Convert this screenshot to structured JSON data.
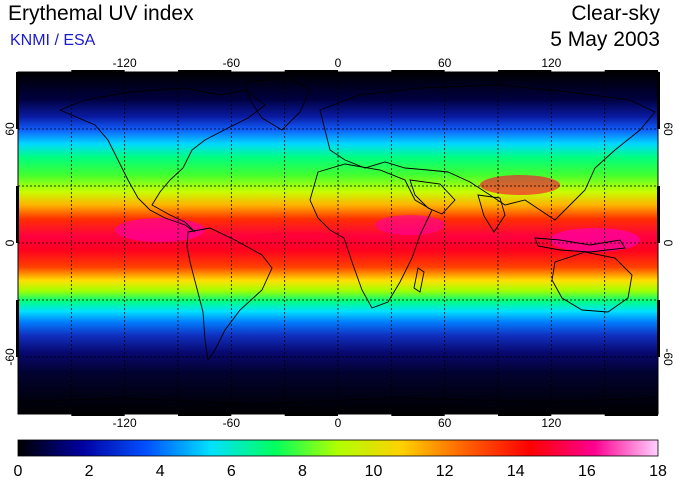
{
  "header": {
    "title": "Erythemal UV index",
    "organization": "KNMI / ESA",
    "sky_condition": "Clear-sky",
    "date": "5 May 2003"
  },
  "map": {
    "lon_range": [
      -180,
      180
    ],
    "lat_range": [
      -90,
      90
    ],
    "gridlines": true,
    "lon_ticks": [
      -120,
      -60,
      0,
      60,
      120
    ],
    "lon_tick_labels": [
      "-120",
      "-60",
      "0",
      "60",
      "120"
    ],
    "lat_ticks": [
      60,
      0,
      -60
    ],
    "lat_tick_labels": [
      "60",
      "0",
      "-60"
    ]
  },
  "colorbar": {
    "min": 0,
    "max": 18,
    "tick_values": [
      0,
      2,
      4,
      6,
      8,
      10,
      12,
      14,
      16,
      18
    ],
    "tick_labels": [
      "0",
      "2",
      "4",
      "6",
      "8",
      "10",
      "12",
      "14",
      "16",
      "18"
    ],
    "colors": [
      "#000000",
      "#0000a0",
      "#0050ff",
      "#00e0ff",
      "#00ff60",
      "#b0ff00",
      "#ffd000",
      "#ff6000",
      "#ff0000",
      "#ff0090",
      "#ffd0ff"
    ]
  }
}
